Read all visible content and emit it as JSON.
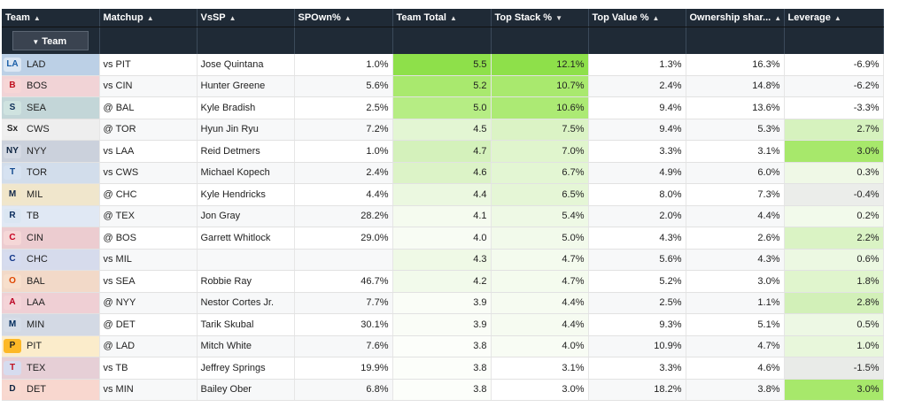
{
  "headers": [
    {
      "label": "Team",
      "sort": "▲"
    },
    {
      "label": "Matchup",
      "sort": "▲"
    },
    {
      "label": "VsSP",
      "sort": "▲"
    },
    {
      "label": "SPOwn%",
      "sort": "▲"
    },
    {
      "label": "Team Total",
      "sort": "▲"
    },
    {
      "label": "Top Stack %",
      "sort": "▼"
    },
    {
      "label": "Top Value %",
      "sort": "▲"
    },
    {
      "label": "Ownership shar...",
      "sort": "▲"
    },
    {
      "label": "Leverage",
      "sort": "▲"
    }
  ],
  "filter": {
    "label": "Team",
    "icon": "funnel-icon",
    "glyph": "▼"
  },
  "rows": [
    {
      "team": "LAD",
      "logo": {
        "text": "LA",
        "fg": "#1a5ea8",
        "bg": "#dce7f3"
      },
      "team_bg": "#bcd0e6",
      "matchup": "vs PIT",
      "vssp": "Jose Quintana",
      "spown": "1.0%",
      "total": "5.5",
      "total_bg": "#8ee04a",
      "stack": "12.1%",
      "stack_bg": "#8ee04a",
      "value": "1.3%",
      "own": "16.3%",
      "leverage": "-6.9%",
      "lev_bg": ""
    },
    {
      "team": "BOS",
      "logo": {
        "text": "B",
        "fg": "#c0111f",
        "bg": "#f6d6d6"
      },
      "team_bg": "#f1d3d6",
      "matchup": "vs CIN",
      "vssp": "Hunter Greene",
      "spown": "5.6%",
      "total": "5.2",
      "total_bg": "#a9e96e",
      "stack": "10.7%",
      "stack_bg": "#a9e96e",
      "value": "2.4%",
      "own": "14.8%",
      "leverage": "-6.2%",
      "lev_bg": ""
    },
    {
      "team": "SEA",
      "logo": {
        "text": "S",
        "fg": "#0c2c56",
        "bg": "#cfe3e0"
      },
      "team_bg": "#c3d6d8",
      "matchup": "@ BAL",
      "vssp": "Kyle Bradish",
      "spown": "2.5%",
      "total": "5.0",
      "total_bg": "#b6ed84",
      "stack": "10.6%",
      "stack_bg": "#acea74",
      "value": "9.4%",
      "own": "13.6%",
      "leverage": "-3.3%",
      "lev_bg": ""
    },
    {
      "team": "CWS",
      "logo": {
        "text": "Sx",
        "fg": "#222222",
        "bg": "#f0f0f0"
      },
      "team_bg": "#eeeeee",
      "matchup": "@ TOR",
      "vssp": "Hyun Jin Ryu",
      "spown": "7.2%",
      "total": "4.5",
      "total_bg": "#e3f6d3",
      "stack": "7.5%",
      "stack_bg": "#dbf3c5",
      "value": "9.4%",
      "own": "5.3%",
      "leverage": "2.7%",
      "lev_bg": "#d6f2be"
    },
    {
      "team": "NYY",
      "logo": {
        "text": "NY",
        "fg": "#0c2340",
        "bg": "#d4d9e3"
      },
      "team_bg": "#cbd1dc",
      "matchup": "vs LAA",
      "vssp": "Reid Detmers",
      "spown": "1.0%",
      "total": "4.7",
      "total_bg": "#d4f1bb",
      "stack": "7.0%",
      "stack_bg": "#e0f5cd",
      "value": "3.3%",
      "own": "3.1%",
      "leverage": "3.0%",
      "lev_bg": "#a7e86b"
    },
    {
      "team": "TOR",
      "logo": {
        "text": "T",
        "fg": "#134a8e",
        "bg": "#d6e2f1"
      },
      "team_bg": "#d2ddeb",
      "matchup": "vs CWS",
      "vssp": "Michael Kopech",
      "spown": "2.4%",
      "total": "4.6",
      "total_bg": "#dcf3c7",
      "stack": "6.7%",
      "stack_bg": "#e3f6d3",
      "value": "4.9%",
      "own": "6.0%",
      "leverage": "0.3%",
      "lev_bg": "#eff8e6"
    },
    {
      "team": "MIL",
      "logo": {
        "text": "M",
        "fg": "#12284b",
        "bg": "#f1e6c9"
      },
      "team_bg": "#f0e6cc",
      "matchup": "@ CHC",
      "vssp": "Kyle Hendricks",
      "spown": "4.4%",
      "total": "4.4",
      "total_bg": "#ebf8e0",
      "stack": "6.5%",
      "stack_bg": "#e5f6d6",
      "value": "8.0%",
      "own": "7.3%",
      "leverage": "-0.4%",
      "lev_bg": "#ebedea"
    },
    {
      "team": "TB",
      "logo": {
        "text": "R",
        "fg": "#092c5c",
        "bg": "#dbe6f2"
      },
      "team_bg": "#e0e8f4",
      "matchup": "@ TEX",
      "vssp": "Jon Gray",
      "spown": "28.2%",
      "total": "4.1",
      "total_bg": "#f5fbef",
      "stack": "5.4%",
      "stack_bg": "#eef9e5",
      "value": "2.0%",
      "own": "4.4%",
      "leverage": "0.2%",
      "lev_bg": "#f2faeb"
    },
    {
      "team": "CIN",
      "logo": {
        "text": "C",
        "fg": "#c6011f",
        "bg": "#f5d7d7"
      },
      "team_bg": "#ecccd0",
      "matchup": "@ BOS",
      "vssp": "Garrett Whitlock",
      "spown": "29.0%",
      "total": "4.0",
      "total_bg": "#f8fcf4",
      "stack": "5.0%",
      "stack_bg": "#f2faeb",
      "value": "4.3%",
      "own": "2.6%",
      "leverage": "2.2%",
      "lev_bg": "#daf3c4"
    },
    {
      "team": "CHC",
      "logo": {
        "text": "C",
        "fg": "#0e3386",
        "bg": "#d6dcef"
      },
      "team_bg": "#d6dbec",
      "matchup": "vs MIL",
      "vssp": "",
      "spown": "",
      "total": "4.3",
      "total_bg": "#eff9e6",
      "stack": "4.7%",
      "stack_bg": "#f4fbee",
      "value": "5.6%",
      "own": "4.3%",
      "leverage": "0.6%",
      "lev_bg": "#ecf8e2"
    },
    {
      "team": "BAL",
      "logo": {
        "text": "O",
        "fg": "#df4601",
        "bg": "#f7dfcc"
      },
      "team_bg": "#f2d9c8",
      "matchup": "vs SEA",
      "vssp": "Robbie Ray",
      "spown": "46.7%",
      "total": "4.2",
      "total_bg": "#f2faeb",
      "stack": "4.7%",
      "stack_bg": "#f4fbee",
      "value": "5.2%",
      "own": "3.0%",
      "leverage": "1.8%",
      "lev_bg": "#e0f5cd"
    },
    {
      "team": "LAA",
      "logo": {
        "text": "A",
        "fg": "#ba0021",
        "bg": "#f4d4d8"
      },
      "team_bg": "#efcfd4",
      "matchup": "@ NYY",
      "vssp": "Nestor Cortes Jr.",
      "spown": "7.7%",
      "total": "3.9",
      "total_bg": "#fafdf7",
      "stack": "4.4%",
      "stack_bg": "#f6fbf1",
      "value": "2.5%",
      "own": "1.1%",
      "leverage": "2.8%",
      "lev_bg": "#d2f0b8"
    },
    {
      "team": "MIN",
      "logo": {
        "text": "M",
        "fg": "#002b5c",
        "bg": "#d6dde8"
      },
      "team_bg": "#d3d9e4",
      "matchup": "@ DET",
      "vssp": "Tarik Skubal",
      "spown": "30.1%",
      "total": "3.9",
      "total_bg": "#fafdf7",
      "stack": "4.4%",
      "stack_bg": "#f6fbf1",
      "value": "9.3%",
      "own": "5.1%",
      "leverage": "0.5%",
      "lev_bg": "#edf8e4"
    },
    {
      "team": "PIT",
      "logo": {
        "text": "P",
        "fg": "#27251f",
        "bg": "#fdb827"
      },
      "team_bg": "#fbeccb",
      "matchup": "@ LAD",
      "vssp": "Mitch White",
      "spown": "7.6%",
      "total": "3.8",
      "total_bg": "#fcfefa",
      "stack": "4.0%",
      "stack_bg": "#f8fcf4",
      "value": "10.9%",
      "own": "4.7%",
      "leverage": "1.0%",
      "lev_bg": "#e8f7db"
    },
    {
      "team": "TEX",
      "logo": {
        "text": "T",
        "fg": "#c0111f",
        "bg": "#d6dcef"
      },
      "team_bg": "#e6cfd6",
      "matchup": "vs TB",
      "vssp": "Jeffrey Springs",
      "spown": "19.9%",
      "total": "3.8",
      "total_bg": "#fcfefa",
      "stack": "3.1%",
      "stack_bg": "#ffffff",
      "value": "3.3%",
      "own": "4.6%",
      "leverage": "-1.5%",
      "lev_bg": "#e9ebe8"
    },
    {
      "team": "DET",
      "logo": {
        "text": "D",
        "fg": "#0c2340",
        "bg": "#f8d9d0"
      },
      "team_bg": "#f8d7cf",
      "matchup": "vs MIN",
      "vssp": "Bailey Ober",
      "spown": "6.8%",
      "total": "3.8",
      "total_bg": "#fcfefa",
      "stack": "3.0%",
      "stack_bg": "#ffffff",
      "value": "18.2%",
      "own": "3.8%",
      "leverage": "3.0%",
      "lev_bg": "#a7e86b"
    }
  ]
}
